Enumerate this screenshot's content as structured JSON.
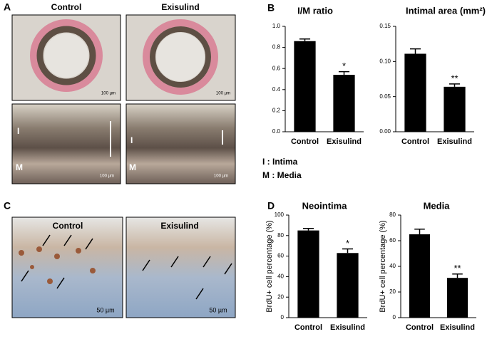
{
  "panels": {
    "A": {
      "label": "A",
      "columns": [
        "Control",
        "Exisulind"
      ],
      "scale": "100 µm",
      "intima": "I",
      "media": "M"
    },
    "legend": [
      "I : Intima",
      "M : Media"
    ],
    "B": {
      "label": "B"
    },
    "C": {
      "label": "C",
      "columns": [
        "Control",
        "Exisulind"
      ],
      "scale": "50 µm"
    },
    "D": {
      "label": "D"
    }
  },
  "chart_data": [
    {
      "type": "bar",
      "title": "I/M ratio",
      "categories": [
        "Control",
        "Exisulind"
      ],
      "values": [
        0.86,
        0.54
      ],
      "errors": [
        0.02,
        0.03
      ],
      "color": "#000000",
      "ylim": [
        0,
        1.0
      ],
      "yticks": [
        {
          "value": 0,
          "label": "0.0"
        },
        0.2,
        0.4,
        0.6,
        0.8,
        {
          "value": 1.0,
          "label": "1.0"
        }
      ],
      "annotation": "*"
    },
    {
      "type": "bar",
      "title": "Intimal area (mm²)",
      "categories": [
        "Control",
        "Exisulind"
      ],
      "values": [
        0.111,
        0.064
      ],
      "errors": [
        0.007,
        0.004
      ],
      "color": "#000000",
      "ylim": [
        0,
        0.15
      ],
      "yticks": [
        {
          "value": 0,
          "label": "0.00"
        },
        0.05,
        {
          "value": 0.1,
          "label": "0.10"
        },
        0.15
      ],
      "annotation": "**"
    },
    {
      "type": "bar",
      "title": "Neointima",
      "ylabel": "BrdU+ cell percentage (%)",
      "categories": [
        "Control",
        "Exisulind"
      ],
      "values": [
        85,
        63
      ],
      "errors": [
        2,
        4
      ],
      "color": "#000000",
      "ylim": [
        0,
        100
      ],
      "yticks": [
        0,
        20,
        40,
        60,
        80,
        100
      ],
      "annotation": "*"
    },
    {
      "type": "bar",
      "title": "Media",
      "ylabel": "BrdU+ cell percentage (%)",
      "categories": [
        "Control",
        "Exisulind"
      ],
      "values": [
        65,
        31
      ],
      "errors": [
        4,
        3
      ],
      "color": "#000000",
      "ylim": [
        0,
        80
      ],
      "yticks": [
        0,
        20,
        40,
        60,
        80
      ],
      "annotation": "**"
    }
  ]
}
